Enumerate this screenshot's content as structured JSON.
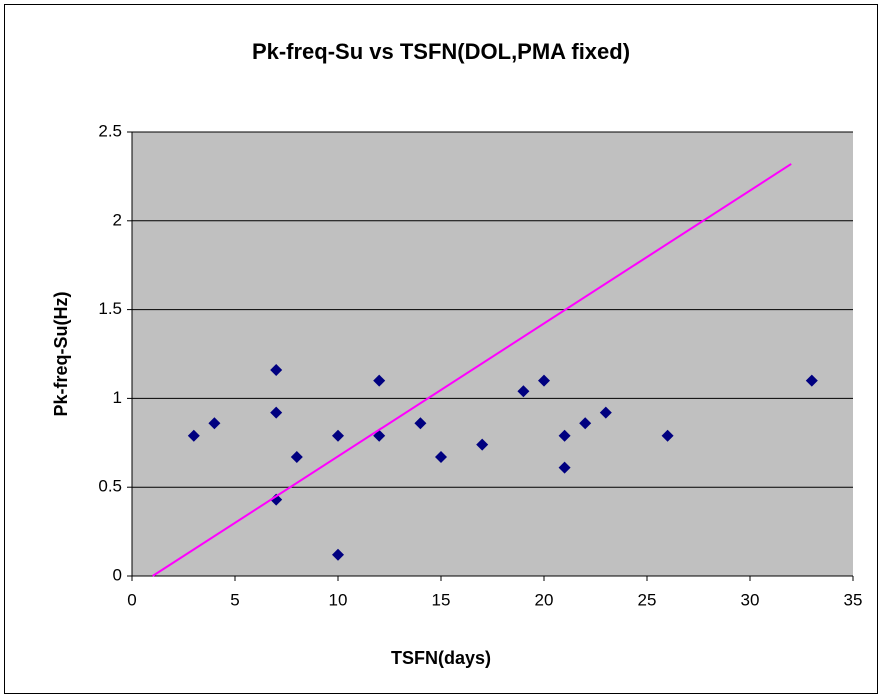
{
  "chart_data": {
    "type": "scatter",
    "title": "Pk-freq-Su vs TSFN(DOL,PMA fixed)",
    "x_label": "TSFN(days)",
    "y_label": "Pk-freq-Su(Hz)",
    "xlim": [
      0,
      35
    ],
    "xticks": [
      0,
      5,
      10,
      15,
      20,
      25,
      30,
      35
    ],
    "ylim": [
      0,
      2.5
    ],
    "yticks": [
      0,
      0.5,
      1,
      1.5,
      2,
      2.5
    ],
    "grid": true,
    "background": "#c0c0c0",
    "series": [
      {
        "color": "#000080",
        "marker": "diamond",
        "x": [
          3,
          4,
          7,
          7,
          7,
          8,
          10,
          10,
          12,
          12,
          14,
          15,
          17,
          19,
          20,
          21,
          21,
          22,
          23,
          26,
          33
        ],
        "values": [
          0.79,
          0.86,
          1.16,
          0.92,
          0.43,
          0.67,
          0.79,
          0.12,
          1.1,
          0.79,
          0.86,
          0.67,
          0.74,
          1.04,
          1.1,
          0.79,
          0.61,
          0.86,
          0.92,
          0.79,
          1.1
        ]
      },
      {
        "color": "#ff00ff",
        "mode": "line",
        "x": [
          1,
          32
        ],
        "values": [
          0,
          2.32
        ]
      }
    ]
  }
}
